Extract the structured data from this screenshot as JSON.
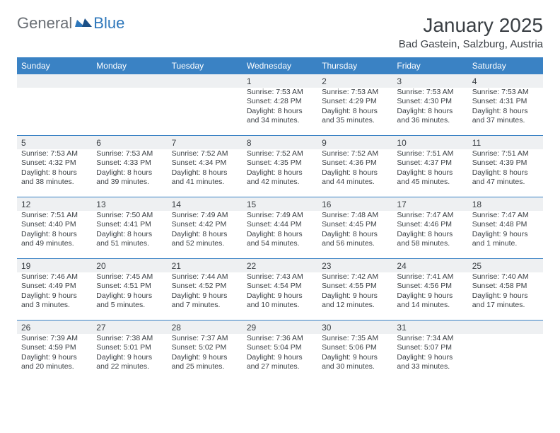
{
  "logo": {
    "text1": "General",
    "text2": "Blue"
  },
  "title": "January 2025",
  "location": "Bad Gastein, Salzburg, Austria",
  "colors": {
    "header_row_bg": "#3a82c4",
    "header_row_text": "#ffffff",
    "daynum_bg": "#eef0f2",
    "row_separator": "#3a82c4",
    "text": "#3a3f44",
    "logo_gray": "#6a6f75",
    "logo_blue": "#2e77bb"
  },
  "weekdays": [
    "Sunday",
    "Monday",
    "Tuesday",
    "Wednesday",
    "Thursday",
    "Friday",
    "Saturday"
  ],
  "weeks": [
    [
      {
        "n": "",
        "sr": "",
        "ss": "",
        "dl": ""
      },
      {
        "n": "",
        "sr": "",
        "ss": "",
        "dl": ""
      },
      {
        "n": "",
        "sr": "",
        "ss": "",
        "dl": ""
      },
      {
        "n": "1",
        "sr": "Sunrise: 7:53 AM",
        "ss": "Sunset: 4:28 PM",
        "dl": "Daylight: 8 hours and 34 minutes."
      },
      {
        "n": "2",
        "sr": "Sunrise: 7:53 AM",
        "ss": "Sunset: 4:29 PM",
        "dl": "Daylight: 8 hours and 35 minutes."
      },
      {
        "n": "3",
        "sr": "Sunrise: 7:53 AM",
        "ss": "Sunset: 4:30 PM",
        "dl": "Daylight: 8 hours and 36 minutes."
      },
      {
        "n": "4",
        "sr": "Sunrise: 7:53 AM",
        "ss": "Sunset: 4:31 PM",
        "dl": "Daylight: 8 hours and 37 minutes."
      }
    ],
    [
      {
        "n": "5",
        "sr": "Sunrise: 7:53 AM",
        "ss": "Sunset: 4:32 PM",
        "dl": "Daylight: 8 hours and 38 minutes."
      },
      {
        "n": "6",
        "sr": "Sunrise: 7:53 AM",
        "ss": "Sunset: 4:33 PM",
        "dl": "Daylight: 8 hours and 39 minutes."
      },
      {
        "n": "7",
        "sr": "Sunrise: 7:52 AM",
        "ss": "Sunset: 4:34 PM",
        "dl": "Daylight: 8 hours and 41 minutes."
      },
      {
        "n": "8",
        "sr": "Sunrise: 7:52 AM",
        "ss": "Sunset: 4:35 PM",
        "dl": "Daylight: 8 hours and 42 minutes."
      },
      {
        "n": "9",
        "sr": "Sunrise: 7:52 AM",
        "ss": "Sunset: 4:36 PM",
        "dl": "Daylight: 8 hours and 44 minutes."
      },
      {
        "n": "10",
        "sr": "Sunrise: 7:51 AM",
        "ss": "Sunset: 4:37 PM",
        "dl": "Daylight: 8 hours and 45 minutes."
      },
      {
        "n": "11",
        "sr": "Sunrise: 7:51 AM",
        "ss": "Sunset: 4:39 PM",
        "dl": "Daylight: 8 hours and 47 minutes."
      }
    ],
    [
      {
        "n": "12",
        "sr": "Sunrise: 7:51 AM",
        "ss": "Sunset: 4:40 PM",
        "dl": "Daylight: 8 hours and 49 minutes."
      },
      {
        "n": "13",
        "sr": "Sunrise: 7:50 AM",
        "ss": "Sunset: 4:41 PM",
        "dl": "Daylight: 8 hours and 51 minutes."
      },
      {
        "n": "14",
        "sr": "Sunrise: 7:49 AM",
        "ss": "Sunset: 4:42 PM",
        "dl": "Daylight: 8 hours and 52 minutes."
      },
      {
        "n": "15",
        "sr": "Sunrise: 7:49 AM",
        "ss": "Sunset: 4:44 PM",
        "dl": "Daylight: 8 hours and 54 minutes."
      },
      {
        "n": "16",
        "sr": "Sunrise: 7:48 AM",
        "ss": "Sunset: 4:45 PM",
        "dl": "Daylight: 8 hours and 56 minutes."
      },
      {
        "n": "17",
        "sr": "Sunrise: 7:47 AM",
        "ss": "Sunset: 4:46 PM",
        "dl": "Daylight: 8 hours and 58 minutes."
      },
      {
        "n": "18",
        "sr": "Sunrise: 7:47 AM",
        "ss": "Sunset: 4:48 PM",
        "dl": "Daylight: 9 hours and 1 minute."
      }
    ],
    [
      {
        "n": "19",
        "sr": "Sunrise: 7:46 AM",
        "ss": "Sunset: 4:49 PM",
        "dl": "Daylight: 9 hours and 3 minutes."
      },
      {
        "n": "20",
        "sr": "Sunrise: 7:45 AM",
        "ss": "Sunset: 4:51 PM",
        "dl": "Daylight: 9 hours and 5 minutes."
      },
      {
        "n": "21",
        "sr": "Sunrise: 7:44 AM",
        "ss": "Sunset: 4:52 PM",
        "dl": "Daylight: 9 hours and 7 minutes."
      },
      {
        "n": "22",
        "sr": "Sunrise: 7:43 AM",
        "ss": "Sunset: 4:54 PM",
        "dl": "Daylight: 9 hours and 10 minutes."
      },
      {
        "n": "23",
        "sr": "Sunrise: 7:42 AM",
        "ss": "Sunset: 4:55 PM",
        "dl": "Daylight: 9 hours and 12 minutes."
      },
      {
        "n": "24",
        "sr": "Sunrise: 7:41 AM",
        "ss": "Sunset: 4:56 PM",
        "dl": "Daylight: 9 hours and 14 minutes."
      },
      {
        "n": "25",
        "sr": "Sunrise: 7:40 AM",
        "ss": "Sunset: 4:58 PM",
        "dl": "Daylight: 9 hours and 17 minutes."
      }
    ],
    [
      {
        "n": "26",
        "sr": "Sunrise: 7:39 AM",
        "ss": "Sunset: 4:59 PM",
        "dl": "Daylight: 9 hours and 20 minutes."
      },
      {
        "n": "27",
        "sr": "Sunrise: 7:38 AM",
        "ss": "Sunset: 5:01 PM",
        "dl": "Daylight: 9 hours and 22 minutes."
      },
      {
        "n": "28",
        "sr": "Sunrise: 7:37 AM",
        "ss": "Sunset: 5:02 PM",
        "dl": "Daylight: 9 hours and 25 minutes."
      },
      {
        "n": "29",
        "sr": "Sunrise: 7:36 AM",
        "ss": "Sunset: 5:04 PM",
        "dl": "Daylight: 9 hours and 27 minutes."
      },
      {
        "n": "30",
        "sr": "Sunrise: 7:35 AM",
        "ss": "Sunset: 5:06 PM",
        "dl": "Daylight: 9 hours and 30 minutes."
      },
      {
        "n": "31",
        "sr": "Sunrise: 7:34 AM",
        "ss": "Sunset: 5:07 PM",
        "dl": "Daylight: 9 hours and 33 minutes."
      },
      {
        "n": "",
        "sr": "",
        "ss": "",
        "dl": ""
      }
    ]
  ]
}
